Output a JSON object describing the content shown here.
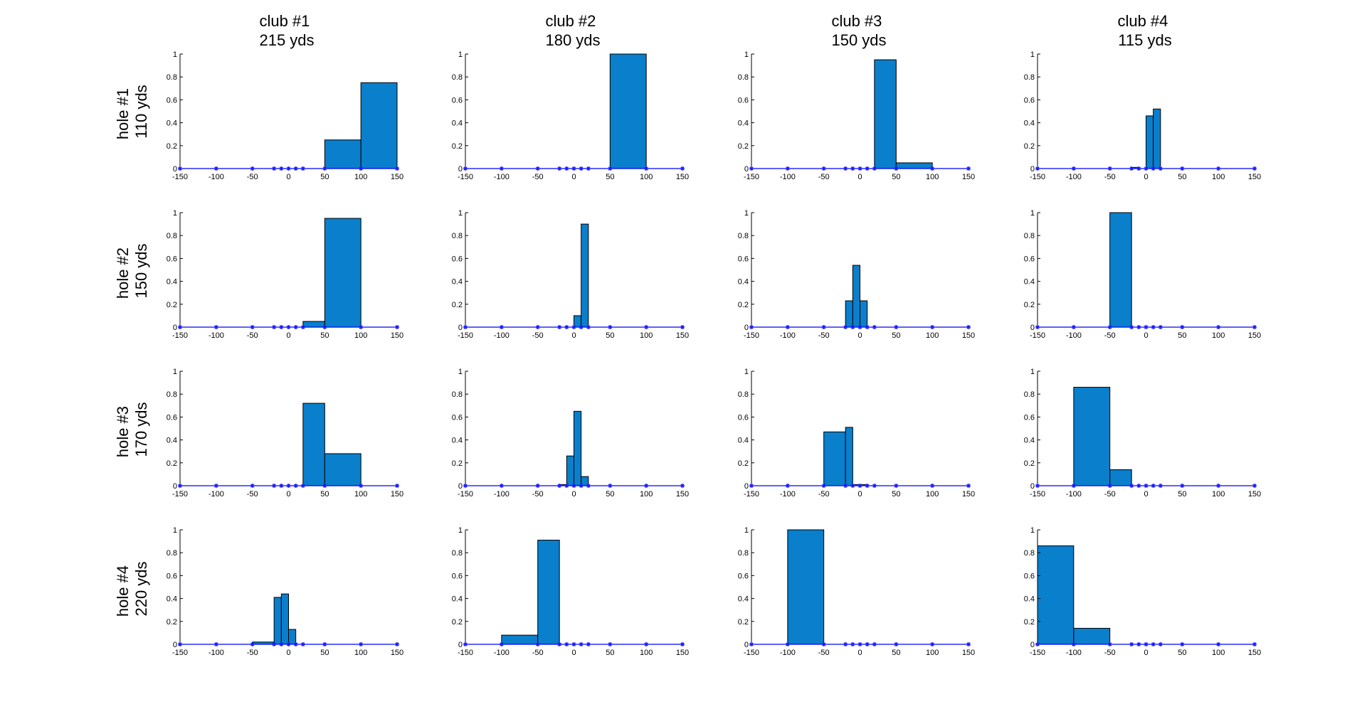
{
  "chart_data": {
    "type": "bar",
    "layout": "4x4 grid of histograms",
    "column_titles": [
      [
        "club #1",
        "215 yds"
      ],
      [
        "club #2",
        "180 yds"
      ],
      [
        "club #3",
        "150 yds"
      ],
      [
        "club #4",
        "115 yds"
      ]
    ],
    "row_titles": [
      [
        "hole #1",
        "110 yds"
      ],
      [
        "hole #2",
        "150 yds"
      ],
      [
        "hole #3",
        "170 yds"
      ],
      [
        "hole #4",
        "220 yds"
      ]
    ],
    "xlim": [
      -150,
      150
    ],
    "ylim": [
      0,
      1
    ],
    "xticks": [
      -150,
      -100,
      -50,
      0,
      50,
      100,
      150
    ],
    "yticks": [
      0,
      0.2,
      0.4,
      0.6,
      0.8,
      1
    ],
    "bin_edges": [
      -150,
      -100,
      -50,
      -20,
      -10,
      0,
      10,
      20,
      50,
      100,
      150
    ],
    "panels": [
      [
        {
          "values": [
            0,
            0,
            0,
            0,
            0,
            0,
            0,
            0,
            0.25,
            0.75
          ]
        },
        {
          "values": [
            0,
            0,
            0,
            0,
            0,
            0,
            0,
            0,
            1.0,
            0
          ]
        },
        {
          "values": [
            0,
            0,
            0,
            0,
            0,
            0,
            0,
            0.95,
            0.05,
            0
          ]
        },
        {
          "values": [
            0,
            0,
            0,
            0.01,
            0,
            0.46,
            0.52,
            0,
            0,
            0
          ]
        }
      ],
      [
        {
          "values": [
            0,
            0,
            0,
            0,
            0,
            0,
            0,
            0.05,
            0.95,
            0
          ]
        },
        {
          "values": [
            0,
            0,
            0,
            0,
            0,
            0.1,
            0.9,
            0,
            0,
            0
          ]
        },
        {
          "values": [
            0,
            0,
            0,
            0.23,
            0.54,
            0.23,
            0,
            0,
            0,
            0
          ]
        },
        {
          "values": [
            0,
            0,
            1.0,
            0,
            0,
            0,
            0,
            0,
            0,
            0
          ]
        }
      ],
      [
        {
          "values": [
            0,
            0,
            0,
            0,
            0,
            0,
            0,
            0.72,
            0.28,
            0
          ]
        },
        {
          "values": [
            0,
            0,
            0,
            0.01,
            0.26,
            0.65,
            0.08,
            0,
            0,
            0
          ]
        },
        {
          "values": [
            0,
            0,
            0.47,
            0.51,
            0.01,
            0.01,
            0,
            0,
            0,
            0
          ]
        },
        {
          "values": [
            0,
            0.86,
            0.14,
            0,
            0,
            0,
            0,
            0,
            0,
            0
          ]
        }
      ],
      [
        {
          "values": [
            0,
            0,
            0.02,
            0.41,
            0.44,
            0.13,
            0,
            0,
            0,
            0
          ]
        },
        {
          "values": [
            0,
            0.08,
            0.91,
            0,
            0,
            0,
            0,
            0,
            0,
            0
          ]
        },
        {
          "values": [
            0,
            1.0,
            0,
            0,
            0,
            0,
            0,
            0,
            0,
            0
          ]
        },
        {
          "values": [
            0.86,
            0.14,
            0,
            0,
            0,
            0,
            0,
            0,
            0,
            0
          ]
        }
      ]
    ]
  }
}
